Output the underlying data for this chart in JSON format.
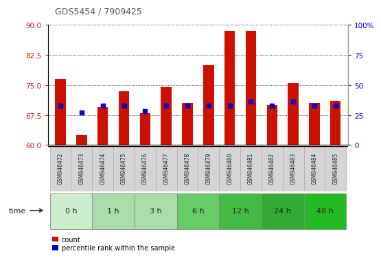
{
  "title": "GDS5454 / 7909425",
  "samples": [
    "GSM946472",
    "GSM946473",
    "GSM946474",
    "GSM946475",
    "GSM946476",
    "GSM946477",
    "GSM946478",
    "GSM946479",
    "GSM946480",
    "GSM946481",
    "GSM946482",
    "GSM946483",
    "GSM946484",
    "GSM946485"
  ],
  "count_values": [
    76.5,
    62.5,
    69.5,
    73.5,
    68.0,
    74.5,
    70.5,
    80.0,
    88.5,
    88.5,
    70.0,
    75.5,
    70.5,
    71.0
  ],
  "percentile_values": [
    33,
    27,
    33,
    33,
    28,
    33,
    33,
    33,
    33,
    36,
    33,
    36,
    33,
    33
  ],
  "ymin": 60,
  "ymax": 90,
  "yticks": [
    60,
    67.5,
    75,
    82.5,
    90
  ],
  "right_yticks": [
    0,
    25,
    50,
    75,
    100
  ],
  "bar_color": "#cc1100",
  "square_color": "#0000cc",
  "time_groups": [
    {
      "label": "0 h",
      "start": 0,
      "end": 1,
      "color": "#cceecc"
    },
    {
      "label": "1 h",
      "start": 2,
      "end": 3,
      "color": "#aaddaa"
    },
    {
      "label": "3 h",
      "start": 4,
      "end": 5,
      "color": "#aaddaa"
    },
    {
      "label": "6 h",
      "start": 6,
      "end": 7,
      "color": "#66cc66"
    },
    {
      "label": "12 h",
      "start": 8,
      "end": 9,
      "color": "#44bb44"
    },
    {
      "label": "24 h",
      "start": 10,
      "end": 11,
      "color": "#33aa33"
    },
    {
      "label": "48 h",
      "start": 12,
      "end": 13,
      "color": "#22bb22"
    }
  ],
  "legend_count_label": "count",
  "legend_pct_label": "percentile rank within the sample",
  "time_label": "time"
}
